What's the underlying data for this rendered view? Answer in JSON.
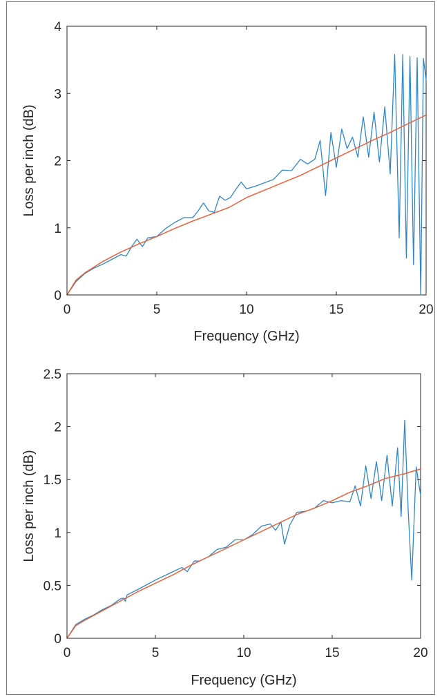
{
  "colors": {
    "measured": "#2e86c8",
    "fit": "#e8613a",
    "axis": "#262626"
  },
  "chart_data": [
    {
      "type": "line",
      "xlabel": "Frequency (GHz)",
      "ylabel": "Loss per inch (dB)",
      "xlim": [
        0,
        20
      ],
      "ylim": [
        0,
        4
      ],
      "xticks": [
        "0",
        "5",
        "10",
        "15",
        "20"
      ],
      "yticks": [
        "0",
        "1",
        "2",
        "3",
        "4"
      ],
      "grid": false,
      "series": [
        {
          "x": [
            0,
            0.5,
            1,
            1.5,
            2,
            2.5,
            3,
            3.3,
            3.6,
            3.9,
            4.2,
            4.5,
            5,
            5.5,
            6,
            6.5,
            7,
            7.3,
            7.6,
            7.9,
            8.2,
            8.5,
            8.8,
            9.1,
            9.4,
            9.7,
            10,
            10.5,
            11,
            11.5,
            12,
            12.5,
            13,
            13.4,
            13.8,
            14.1,
            14.4,
            14.7,
            15,
            15.3,
            15.6,
            15.9,
            16.2,
            16.5,
            16.8,
            17.1,
            17.4,
            17.7,
            18.0,
            18.25,
            18.5,
            18.7,
            18.9,
            19.1,
            19.3,
            19.5,
            19.7,
            19.85,
            20
          ],
          "y": [
            0,
            0.2,
            0.32,
            0.4,
            0.46,
            0.53,
            0.6,
            0.58,
            0.72,
            0.83,
            0.72,
            0.85,
            0.87,
            0.99,
            1.08,
            1.15,
            1.15,
            1.25,
            1.37,
            1.25,
            1.23,
            1.47,
            1.41,
            1.45,
            1.57,
            1.68,
            1.58,
            1.62,
            1.67,
            1.72,
            1.86,
            1.85,
            2.02,
            1.95,
            2.02,
            2.3,
            1.48,
            2.42,
            1.9,
            2.47,
            2.18,
            2.35,
            2.05,
            2.65,
            2.05,
            2.72,
            1.98,
            2.8,
            1.8,
            3.58,
            0.85,
            3.58,
            0.55,
            3.55,
            0.45,
            3.53,
            0.0,
            3.52,
            3.2
          ]
        },
        {
          "x": [
            0,
            0.5,
            1,
            2,
            3,
            4,
            5,
            6,
            7,
            8,
            9,
            10,
            11,
            12,
            13,
            14,
            15,
            16,
            17,
            18,
            19,
            20
          ],
          "y": [
            0,
            0.22,
            0.33,
            0.5,
            0.64,
            0.76,
            0.87,
            0.99,
            1.1,
            1.2,
            1.3,
            1.45,
            1.56,
            1.67,
            1.78,
            1.91,
            2.04,
            2.17,
            2.3,
            2.42,
            2.55,
            2.68
          ]
        }
      ]
    },
    {
      "type": "line",
      "xlabel": "Frequency (GHz)",
      "ylabel": "Loss per inch (dB)",
      "xlim": [
        0,
        20
      ],
      "ylim": [
        0,
        2.5
      ],
      "xticks": [
        "0",
        "5",
        "10",
        "15",
        "20"
      ],
      "yticks": [
        "0",
        "0.5",
        "1",
        "1.5",
        "2",
        "2.5"
      ],
      "grid": false,
      "series": [
        {
          "x": [
            0,
            0.5,
            1,
            1.5,
            2,
            2.5,
            3,
            3.2,
            3.3,
            3.4,
            4,
            5,
            6,
            6.5,
            6.8,
            7.2,
            7.5,
            8,
            8.5,
            9,
            9.5,
            10,
            10.5,
            11,
            11.5,
            11.8,
            12.1,
            12.3,
            12.6,
            13,
            13.5,
            14,
            14.5,
            15,
            15.5,
            16,
            16.3,
            16.6,
            16.9,
            17.2,
            17.5,
            17.8,
            18.1,
            18.4,
            18.7,
            18.9,
            19.1,
            19.3,
            19.5,
            19.75,
            20
          ],
          "y": [
            0,
            0.13,
            0.18,
            0.22,
            0.27,
            0.31,
            0.37,
            0.38,
            0.35,
            0.41,
            0.46,
            0.55,
            0.63,
            0.67,
            0.63,
            0.73,
            0.73,
            0.77,
            0.84,
            0.86,
            0.93,
            0.93,
            0.98,
            1.06,
            1.08,
            1.02,
            1.1,
            0.89,
            1.07,
            1.19,
            1.2,
            1.23,
            1.3,
            1.28,
            1.3,
            1.29,
            1.44,
            1.25,
            1.63,
            1.32,
            1.67,
            1.3,
            1.73,
            1.25,
            1.8,
            1.15,
            2.06,
            1.2,
            0.55,
            1.62,
            1.35
          ]
        },
        {
          "x": [
            0,
            0.5,
            1,
            2,
            3,
            4,
            5,
            6,
            7,
            8,
            9,
            10,
            11,
            12,
            13,
            14,
            15,
            16,
            17,
            18,
            19,
            20
          ],
          "y": [
            0,
            0.12,
            0.17,
            0.26,
            0.35,
            0.44,
            0.52,
            0.6,
            0.69,
            0.77,
            0.85,
            0.93,
            1.01,
            1.09,
            1.17,
            1.23,
            1.3,
            1.38,
            1.44,
            1.51,
            1.55,
            1.6
          ]
        }
      ]
    }
  ]
}
